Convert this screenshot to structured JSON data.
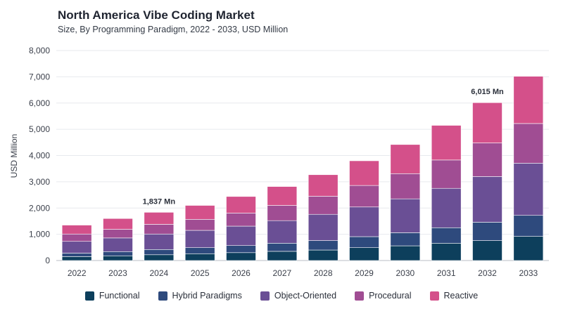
{
  "chart_data": {
    "type": "bar",
    "stacked": true,
    "title": "North America Vibe Coding Market",
    "subtitle": "Size, By Programming Paradigm, 2022 - 2033, USD Million",
    "xlabel": "",
    "ylabel": "USD Million",
    "ylim": [
      0,
      8000
    ],
    "yticks": [
      "0",
      "1,000",
      "2,000",
      "3,000",
      "4,000",
      "5,000",
      "6,000",
      "7,000",
      "8,000"
    ],
    "ytick_values": [
      0,
      1000,
      2000,
      3000,
      4000,
      5000,
      6000,
      7000,
      8000
    ],
    "grid": true,
    "legend_position": "bottom",
    "categories": [
      "2022",
      "2023",
      "2024",
      "2025",
      "2026",
      "2027",
      "2028",
      "2029",
      "2030",
      "2031",
      "2032",
      "2033"
    ],
    "series": [
      {
        "name": "Functional",
        "color": "#0d3f5c",
        "values": [
          150,
          180,
          220,
          260,
          300,
          350,
          400,
          490,
          560,
          660,
          760,
          920
        ]
      },
      {
        "name": "Hybrid Paradigms",
        "color": "#2e4a7d",
        "values": [
          130,
          160,
          200,
          230,
          270,
          310,
          360,
          420,
          500,
          590,
          700,
          800
        ]
      },
      {
        "name": "Object-Oriented",
        "color": "#6a4f95",
        "values": [
          450,
          520,
          590,
          660,
          740,
          860,
          1000,
          1130,
          1290,
          1500,
          1740,
          1990
        ]
      },
      {
        "name": "Procedural",
        "color": "#a04d93",
        "values": [
          280,
          330,
          370,
          420,
          500,
          580,
          690,
          820,
          960,
          1080,
          1280,
          1510
        ]
      },
      {
        "name": "Reactive",
        "color": "#d4508a",
        "values": [
          340,
          410,
          457,
          530,
          630,
          720,
          820,
          940,
          1110,
          1320,
          1535,
          1800
        ]
      }
    ],
    "annotations": [
      {
        "category": "2024",
        "text": "1,837 Mn",
        "value": 1837
      },
      {
        "category": "2032",
        "text": "6,015 Mn",
        "value": 6015
      }
    ]
  }
}
